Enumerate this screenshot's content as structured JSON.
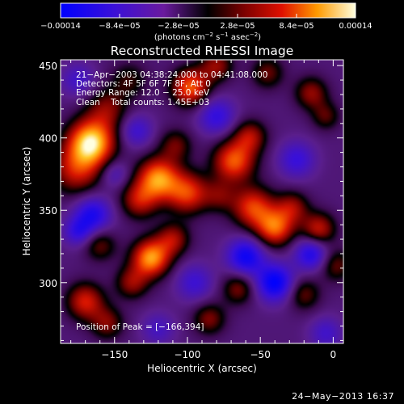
{
  "chart_data": {
    "type": "heatmap",
    "title": "Reconstructed RHESSI Image",
    "xlabel": "Heliocentric X (arcsec)",
    "ylabel": "Heliocentric Y (arcsec)",
    "xlim": [
      -187,
      7
    ],
    "ylim": [
      258,
      454
    ],
    "xticks": [
      -150,
      -100,
      -50,
      0
    ],
    "xtick_labels": [
      "−150",
      "−100",
      "−50",
      "0"
    ],
    "yticks": [
      300,
      350,
      400,
      450
    ],
    "ytick_labels": [
      "300",
      "350",
      "400",
      "450"
    ],
    "grid": false,
    "colorbar": {
      "position": "top",
      "range": [
        -0.00014,
        0.00014
      ],
      "tick_values": [
        -0.00014,
        -8.4e-05,
        -2.8e-05,
        2.8e-05,
        8.4e-05,
        0.00014
      ],
      "tick_labels": [
        "−0.00014",
        "−8.4e−05",
        "−2.8e−05",
        "2.8e−05",
        "8.4e−05",
        "0.00014"
      ],
      "unit_label_parts": [
        "(photons cm",
        "−2",
        " s",
        "−1",
        " asec",
        "−2",
        ")"
      ]
    },
    "annotations": [
      "21−Apr−2003 04:38:24.000 to 04:41:08.000",
      "Detectors: 4F 5F 6F 7F 8F, Att 0",
      "Energy Range: 12.0 − 25.0 keV",
      "Clean    Total counts: 1.45E+03"
    ],
    "peak_label": "Position of Peak = [−166,394]",
    "blobs": [
      {
        "x": -166,
        "y": 397,
        "amp": 1.35,
        "s": 11
      },
      {
        "x": -176,
        "y": 378,
        "amp": 0.7,
        "s": 12
      },
      {
        "x": -155,
        "y": 420,
        "amp": 0.5,
        "s": 10
      },
      {
        "x": -120,
        "y": 372,
        "amp": 1.1,
        "s": 10
      },
      {
        "x": -100,
        "y": 362,
        "amp": 0.85,
        "s": 10
      },
      {
        "x": -133,
        "y": 357,
        "amp": 0.65,
        "s": 9
      },
      {
        "x": -98,
        "y": 435,
        "amp": 0.95,
        "s": 9
      },
      {
        "x": -80,
        "y": 450,
        "amp": 0.55,
        "s": 8
      },
      {
        "x": -108,
        "y": 395,
        "amp": 0.45,
        "s": 8
      },
      {
        "x": -68,
        "y": 384,
        "amp": 0.95,
        "s": 10
      },
      {
        "x": -57,
        "y": 401,
        "amp": 0.6,
        "s": 8
      },
      {
        "x": -78,
        "y": 360,
        "amp": 0.4,
        "s": 8
      },
      {
        "x": -55,
        "y": 352,
        "amp": 0.85,
        "s": 10
      },
      {
        "x": -40,
        "y": 338,
        "amp": 0.95,
        "s": 9
      },
      {
        "x": -28,
        "y": 352,
        "amp": 0.55,
        "s": 8
      },
      {
        "x": -10,
        "y": 337,
        "amp": 0.7,
        "s": 8
      },
      {
        "x": -125,
        "y": 317,
        "amp": 1.15,
        "s": 9
      },
      {
        "x": -110,
        "y": 330,
        "amp": 0.6,
        "s": 8
      },
      {
        "x": -138,
        "y": 300,
        "amp": 0.55,
        "s": 8
      },
      {
        "x": -160,
        "y": 326,
        "amp": 0.45,
        "s": 8
      },
      {
        "x": -170,
        "y": 287,
        "amp": 0.75,
        "s": 9
      },
      {
        "x": -155,
        "y": 272,
        "amp": 0.5,
        "s": 8
      },
      {
        "x": -85,
        "y": 275,
        "amp": 0.5,
        "s": 8
      },
      {
        "x": -65,
        "y": 296,
        "amp": 0.5,
        "s": 8
      },
      {
        "x": -20,
        "y": 292,
        "amp": 0.45,
        "s": 8
      },
      {
        "x": 2,
        "y": 312,
        "amp": 0.45,
        "s": 8
      },
      {
        "x": -15,
        "y": 431,
        "amp": 0.55,
        "s": 8
      },
      {
        "x": -5,
        "y": 415,
        "amp": 0.4,
        "s": 7
      },
      {
        "x": -45,
        "y": 445,
        "amp": 0.45,
        "s": 8
      },
      {
        "x": -140,
        "y": 440,
        "amp": 0.35,
        "s": 9
      },
      {
        "x": -60,
        "y": 318,
        "amp": -0.8,
        "s": 9
      },
      {
        "x": -40,
        "y": 300,
        "amp": -0.9,
        "s": 9
      },
      {
        "x": -15,
        "y": 320,
        "amp": -0.7,
        "s": 8
      },
      {
        "x": -165,
        "y": 347,
        "amp": -0.7,
        "s": 9
      },
      {
        "x": -175,
        "y": 335,
        "amp": -0.5,
        "s": 7
      },
      {
        "x": -80,
        "y": 415,
        "amp": -0.55,
        "s": 9
      },
      {
        "x": -135,
        "y": 405,
        "amp": -0.45,
        "s": 8
      },
      {
        "x": -95,
        "y": 300,
        "amp": -0.45,
        "s": 9
      },
      {
        "x": -25,
        "y": 385,
        "amp": -0.5,
        "s": 9
      },
      {
        "x": -150,
        "y": 375,
        "amp": -0.35,
        "s": 7
      },
      {
        "x": -175,
        "y": 440,
        "amp": -0.4,
        "s": 8
      },
      {
        "x": -5,
        "y": 265,
        "amp": -0.4,
        "s": 8
      },
      {
        "x": -120,
        "y": 268,
        "amp": -0.35,
        "s": 8
      }
    ],
    "background_level": -0.28
  },
  "footer": {
    "date_label": "24−May−2013 16:37"
  }
}
